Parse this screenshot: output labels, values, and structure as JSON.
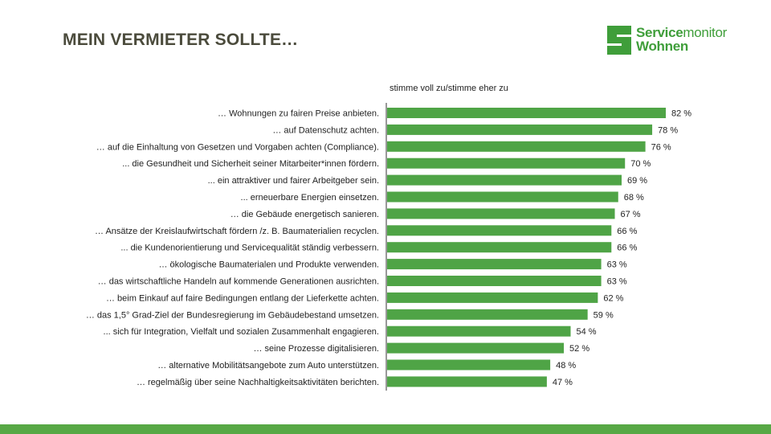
{
  "header": {
    "title": "MEIN VERMIETER SOLLTE…"
  },
  "logo": {
    "line1_bold": "Service",
    "line1_light": "monitor",
    "line2": "Wohnen"
  },
  "colors": {
    "bar": "#4fa446",
    "accent": "#3f9e3a",
    "bottom_bar": "#57a845",
    "title": "#4b4b3c"
  },
  "chart_data": {
    "type": "bar",
    "orientation": "horizontal",
    "legend": "stimme voll zu/stimme eher zu",
    "unit": "%",
    "xlim": [
      0,
      100
    ],
    "grid": false,
    "categories": [
      "… Wohnungen zu fairen Preise anbieten.",
      "… auf Datenschutz achten.",
      "… auf die Einhaltung von Gesetzen und Vorgaben achten (Compliance).",
      "... die Gesundheit und Sicherheit seiner Mitarbeiter*innen fördern.",
      "... ein attraktiver und fairer Arbeitgeber sein.",
      "... erneuerbare Energien einsetzen.",
      "… die Gebäude energetisch sanieren.",
      "… Ansätze der Kreislaufwirtschaft fördern /z. B. Baumaterialien recyclen.",
      "... die Kundenorientierung und Servicequalität ständig verbessern.",
      "… ökologische Baumaterialen und Produkte verwenden.",
      "… das wirtschaftliche Handeln auf kommende Generationen ausrichten.",
      "… beim Einkauf auf faire Bedingungen entlang der Lieferkette achten.",
      "… das 1,5° Grad-Ziel der Bundesregierung im Gebäudebestand umsetzen.",
      "... sich für Integration, Vielfalt und sozialen Zusammenhalt engagieren.",
      "… seine Prozesse digitalisieren.",
      "… alternative Mobilitätsangebote zum Auto unterstützen.",
      "… regelmäßig über seine Nachhaltigkeitsaktivitäten berichten."
    ],
    "values": [
      82,
      78,
      76,
      70,
      69,
      68,
      67,
      66,
      66,
      63,
      63,
      62,
      59,
      54,
      52,
      48,
      47
    ],
    "value_labels": [
      "82 %",
      "78 %",
      "76 %",
      "70 %",
      "69 %",
      "68 %",
      "67 %",
      "66 %",
      "66 %",
      "63 %",
      "63 %",
      "62 %",
      "59 %",
      "54 %",
      "52 %",
      "48 %",
      "47 %"
    ]
  }
}
